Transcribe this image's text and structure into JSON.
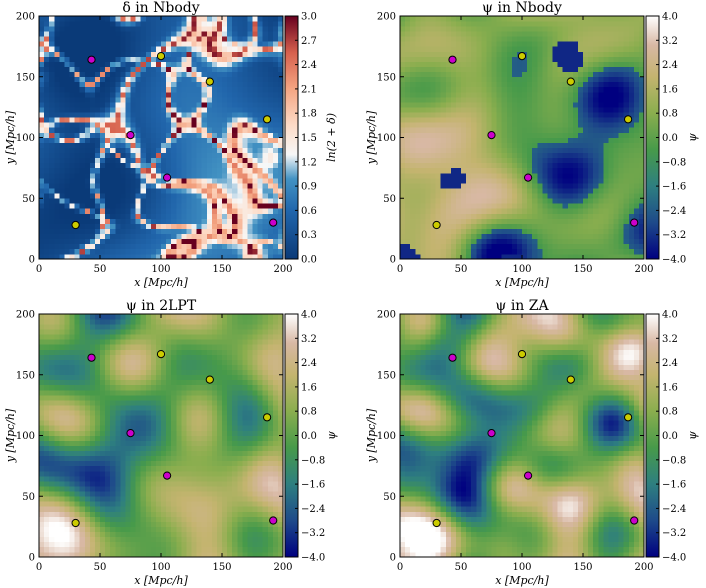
{
  "chart_data": [
    {
      "type": "heatmap",
      "title": "δ in Nbody",
      "xlabel": "x [Mpc/h]",
      "ylabel": "y [Mpc/h]",
      "xlim": [
        0,
        200
      ],
      "ylim": [
        0,
        200
      ],
      "xticks": [
        "0",
        "50",
        "100",
        "150",
        "200"
      ],
      "yticks": [
        "0",
        "50",
        "100",
        "150",
        "200"
      ],
      "colorbar": {
        "label": "ln(2 + δ)",
        "range": [
          0.0,
          3.0
        ],
        "ticks": [
          "0.0",
          "0.3",
          "0.6",
          "0.9",
          "1.2",
          "1.5",
          "1.8",
          "2.1",
          "2.4",
          "2.7",
          "3.0"
        ],
        "colormap": "blue-white-red"
      },
      "markers": [
        {
          "x": 43,
          "y": 164,
          "color": "#cc00cc"
        },
        {
          "x": 100,
          "y": 167,
          "color": "#cccc00"
        },
        {
          "x": 140,
          "y": 146,
          "color": "#cccc00"
        },
        {
          "x": 187,
          "y": 115,
          "color": "#cccc00"
        },
        {
          "x": 75,
          "y": 102,
          "color": "#cc00cc"
        },
        {
          "x": 105,
          "y": 67,
          "color": "#cc00cc"
        },
        {
          "x": 30,
          "y": 28,
          "color": "#cccc00"
        },
        {
          "x": 192,
          "y": 30,
          "color": "#cc00cc"
        }
      ]
    },
    {
      "type": "heatmap",
      "title": "ψ in Nbody",
      "xlabel": "x [Mpc/h]",
      "ylabel": "y [Mpc/h]",
      "xlim": [
        0,
        200
      ],
      "ylim": [
        0,
        200
      ],
      "xticks": [
        "0",
        "50",
        "100",
        "150",
        "200"
      ],
      "yticks": [
        "0",
        "50",
        "100",
        "150",
        "200"
      ],
      "colorbar": {
        "label": "ψ",
        "range": [
          -4.0,
          4.0
        ],
        "ticks": [
          "−4.0",
          "−3.2",
          "−2.4",
          "−1.6",
          "−0.8",
          "0.0",
          "0.8",
          "1.6",
          "2.4",
          "3.2",
          "4.0"
        ],
        "colormap": "gist_earth"
      },
      "markers": [
        {
          "x": 43,
          "y": 164,
          "color": "#cc00cc"
        },
        {
          "x": 100,
          "y": 167,
          "color": "#cccc00"
        },
        {
          "x": 140,
          "y": 146,
          "color": "#cccc00"
        },
        {
          "x": 187,
          "y": 115,
          "color": "#cccc00"
        },
        {
          "x": 75,
          "y": 102,
          "color": "#cc00cc"
        },
        {
          "x": 105,
          "y": 67,
          "color": "#cc00cc"
        },
        {
          "x": 30,
          "y": 28,
          "color": "#cccc00"
        },
        {
          "x": 192,
          "y": 30,
          "color": "#cc00cc"
        }
      ]
    },
    {
      "type": "heatmap",
      "title": "ψ in 2LPT",
      "xlabel": "x [Mpc/h]",
      "ylabel": "y [Mpc/h]",
      "xlim": [
        0,
        200
      ],
      "ylim": [
        0,
        200
      ],
      "xticks": [
        "0",
        "50",
        "100",
        "150",
        "200"
      ],
      "yticks": [
        "0",
        "50",
        "100",
        "150",
        "200"
      ],
      "colorbar": {
        "label": "ψ",
        "range": [
          -4.0,
          4.0
        ],
        "ticks": [
          "−4.0",
          "−3.2",
          "−2.4",
          "−1.6",
          "−0.8",
          "0.0",
          "0.8",
          "1.6",
          "2.4",
          "3.2",
          "4.0"
        ],
        "colormap": "gist_earth"
      },
      "markers": [
        {
          "x": 43,
          "y": 164,
          "color": "#cc00cc"
        },
        {
          "x": 100,
          "y": 167,
          "color": "#cccc00"
        },
        {
          "x": 140,
          "y": 146,
          "color": "#cccc00"
        },
        {
          "x": 187,
          "y": 115,
          "color": "#cccc00"
        },
        {
          "x": 75,
          "y": 102,
          "color": "#cc00cc"
        },
        {
          "x": 105,
          "y": 67,
          "color": "#cc00cc"
        },
        {
          "x": 30,
          "y": 28,
          "color": "#cccc00"
        },
        {
          "x": 192,
          "y": 30,
          "color": "#cc00cc"
        }
      ]
    },
    {
      "type": "heatmap",
      "title": "ψ in ZA",
      "xlabel": "x [Mpc/h]",
      "ylabel": "y [Mpc/h]",
      "xlim": [
        0,
        200
      ],
      "ylim": [
        0,
        200
      ],
      "xticks": [
        "0",
        "50",
        "100",
        "150",
        "200"
      ],
      "yticks": [
        "0",
        "50",
        "100",
        "150",
        "200"
      ],
      "colorbar": {
        "label": "ψ",
        "range": [
          -4.0,
          4.0
        ],
        "ticks": [
          "−4.0",
          "−3.2",
          "−2.4",
          "−1.6",
          "−0.8",
          "0.0",
          "0.8",
          "1.6",
          "2.4",
          "3.2",
          "4.0"
        ],
        "colormap": "gist_earth"
      },
      "markers": [
        {
          "x": 43,
          "y": 164,
          "color": "#cc00cc"
        },
        {
          "x": 100,
          "y": 167,
          "color": "#cccc00"
        },
        {
          "x": 140,
          "y": 146,
          "color": "#cccc00"
        },
        {
          "x": 187,
          "y": 115,
          "color": "#cccc00"
        },
        {
          "x": 75,
          "y": 102,
          "color": "#cc00cc"
        },
        {
          "x": 105,
          "y": 67,
          "color": "#cc00cc"
        },
        {
          "x": 30,
          "y": 28,
          "color": "#cccc00"
        },
        {
          "x": 192,
          "y": 30,
          "color": "#cc00cc"
        }
      ]
    }
  ]
}
